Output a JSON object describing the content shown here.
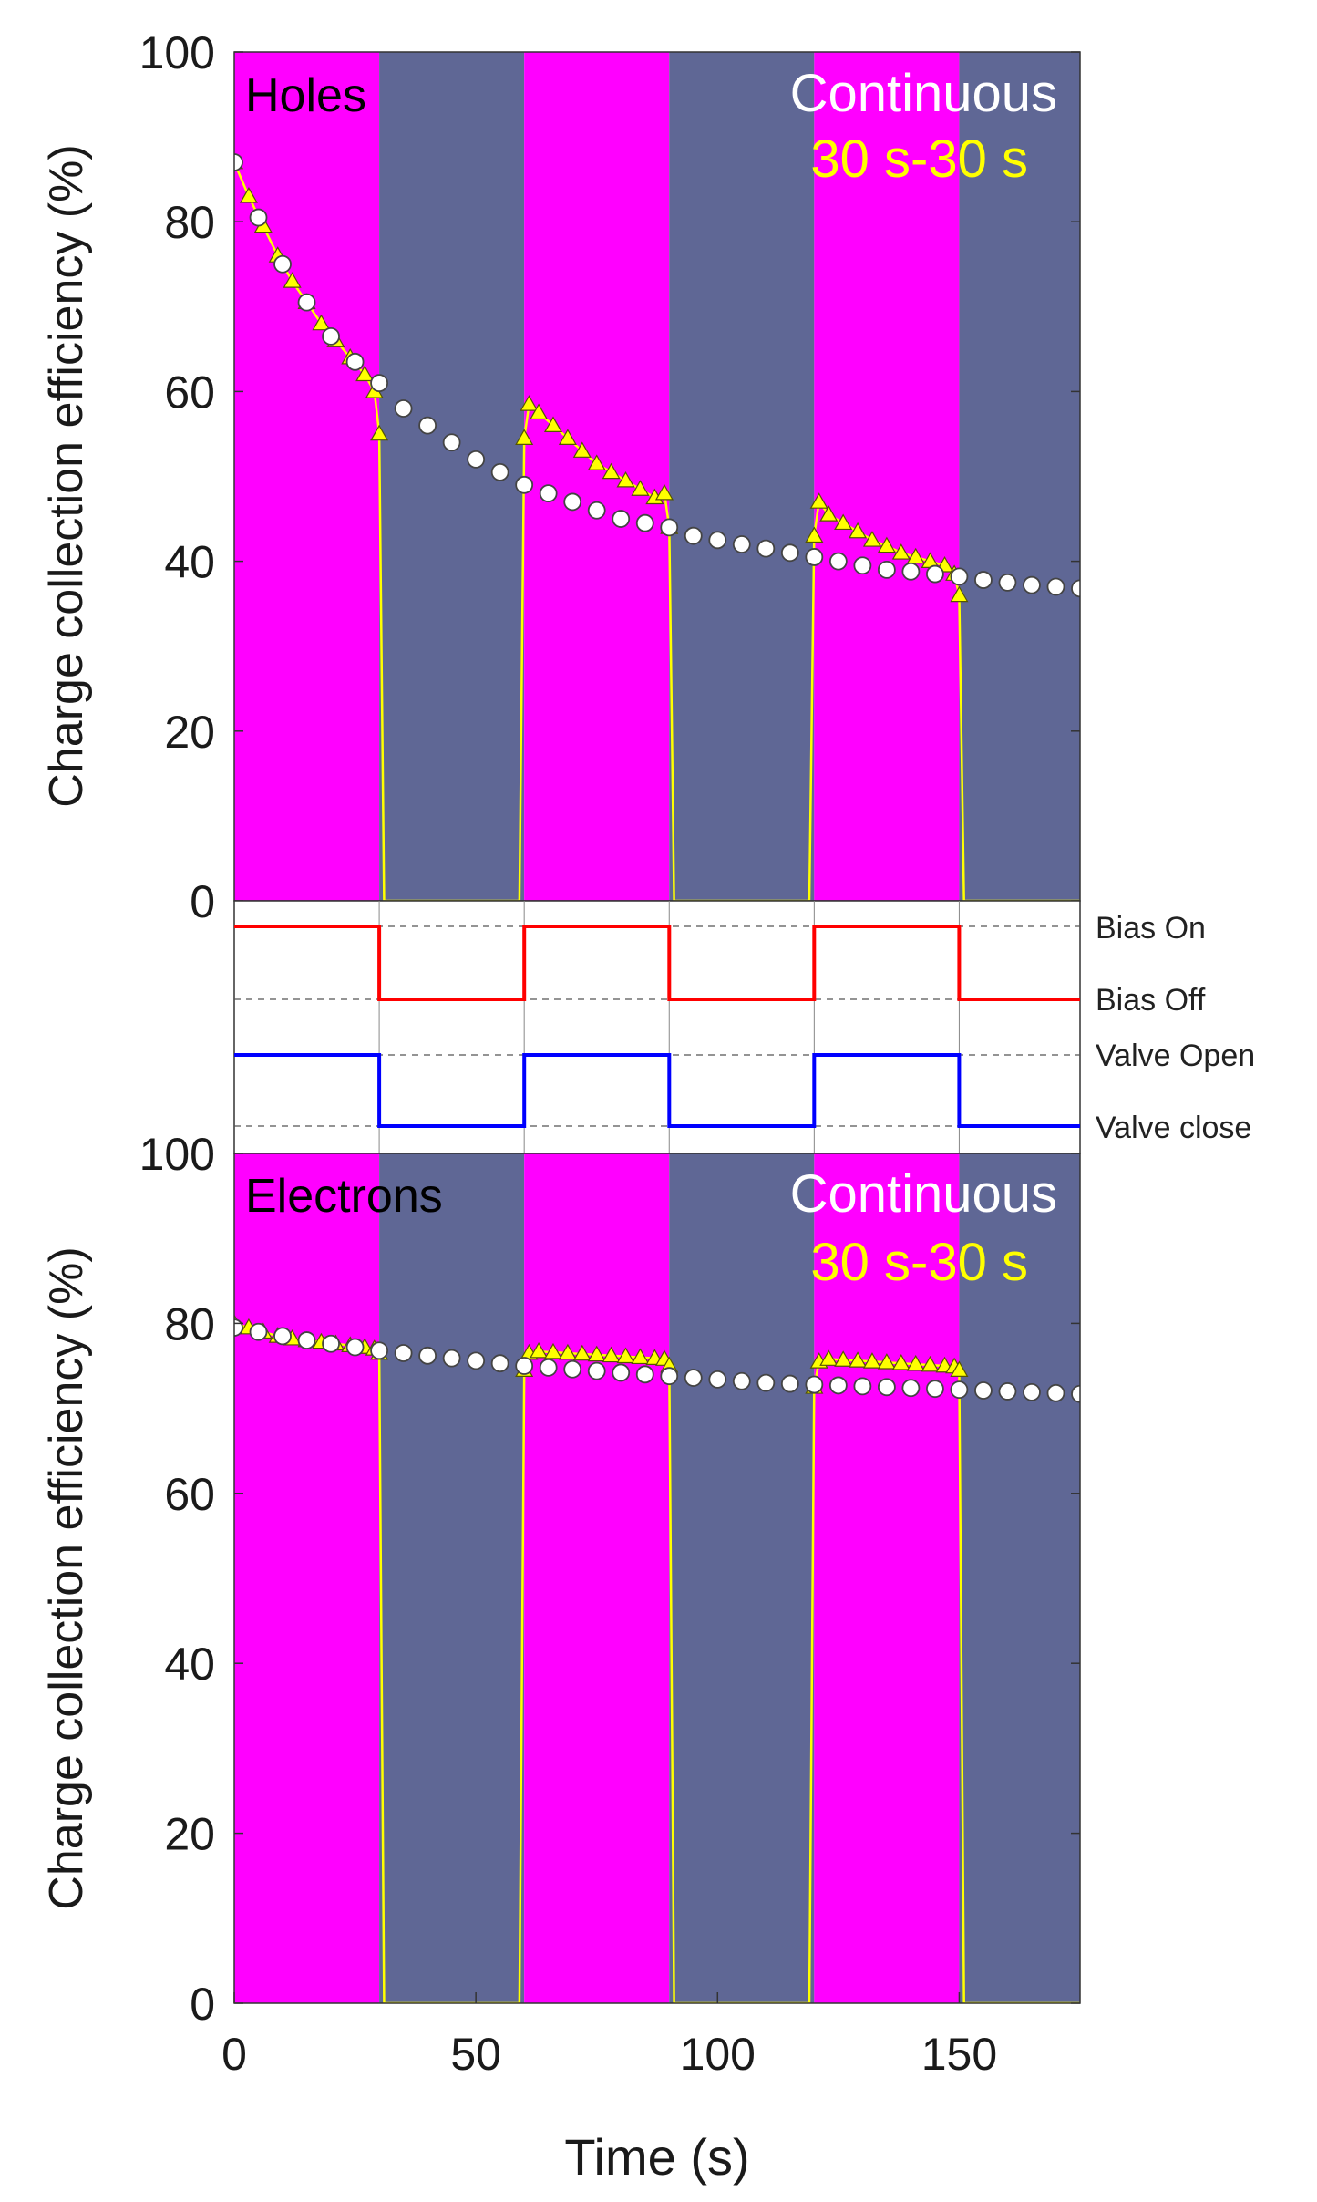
{
  "figure": {
    "xlabel": "Time (s)",
    "ylabel": "Charge collection efficiency (%)",
    "x_ticks": [
      0,
      50,
      100,
      150
    ],
    "x_range": [
      0,
      175
    ]
  },
  "colors": {
    "bias_on_band": "#FF00FF",
    "bias_off_band": "#5F6795",
    "continuous": "#FFFFFF",
    "pulsed": "#FFFF00",
    "bias_trace": "#FF0000",
    "valve_trace": "#0000FF"
  },
  "chart_data": [
    {
      "type": "scatter",
      "panel": "holes",
      "label": "Holes",
      "ylabel": "Charge collection efficiency (%)",
      "xlabel": "Time (s)",
      "xlim": [
        0,
        175
      ],
      "ylim": [
        0,
        100
      ],
      "y_ticks": [
        0,
        20,
        40,
        60,
        80,
        100
      ],
      "legend": [
        "Continuous",
        "30 s-30 s"
      ],
      "bands": [
        {
          "x0": 0,
          "x1": 30,
          "state": "bias_on"
        },
        {
          "x0": 30,
          "x1": 60,
          "state": "bias_off"
        },
        {
          "x0": 60,
          "x1": 90,
          "state": "bias_on"
        },
        {
          "x0": 90,
          "x1": 120,
          "state": "bias_off"
        },
        {
          "x0": 120,
          "x1": 150,
          "state": "bias_on"
        },
        {
          "x0": 150,
          "x1": 175,
          "state": "bias_off"
        }
      ],
      "series": [
        {
          "name": "Continuous",
          "marker": "circle",
          "x": [
            0,
            5,
            10,
            15,
            20,
            25,
            30,
            35,
            40,
            45,
            50,
            55,
            60,
            65,
            70,
            75,
            80,
            85,
            90,
            95,
            100,
            105,
            110,
            115,
            120,
            125,
            130,
            135,
            140,
            145,
            150,
            155,
            160,
            165,
            170,
            175
          ],
          "y": [
            87,
            80.5,
            75,
            70.5,
            66.5,
            63.5,
            61,
            58,
            56,
            54,
            52,
            50.5,
            49,
            48,
            47,
            46,
            45,
            44.5,
            44,
            43,
            42.5,
            42,
            41.5,
            41,
            40.5,
            40,
            39.5,
            39,
            38.8,
            38.5,
            38.2,
            37.8,
            37.5,
            37.2,
            37,
            36.8
          ]
        },
        {
          "name": "30 s-30 s",
          "marker": "triangle",
          "x": [
            0,
            3,
            6,
            9,
            12,
            15,
            18,
            21,
            24,
            27,
            29,
            30,
            31,
            59,
            60,
            61,
            63,
            66,
            69,
            72,
            75,
            78,
            81,
            84,
            87,
            89,
            90,
            91,
            119,
            120,
            121,
            123,
            126,
            129,
            132,
            135,
            138,
            141,
            144,
            147,
            149,
            150,
            151,
            175
          ],
          "y": [
            87,
            83,
            79.5,
            76,
            73,
            70.5,
            68,
            66,
            64,
            62,
            60,
            55,
            0,
            0,
            54.5,
            58.5,
            57.5,
            56,
            54.5,
            53,
            51.5,
            50.5,
            49.5,
            48.5,
            47.5,
            48,
            44,
            0,
            0,
            43,
            47,
            45.5,
            44.5,
            43.5,
            42.5,
            41.8,
            41,
            40.5,
            40,
            39.5,
            38.5,
            36,
            0,
            0
          ]
        }
      ]
    },
    {
      "type": "line",
      "panel": "timing",
      "xlim": [
        0,
        175
      ],
      "states": [
        "Bias On",
        "Bias Off",
        "Valve Open",
        "Valve close"
      ],
      "series": [
        {
          "name": "Bias",
          "x": [
            0,
            30,
            30,
            60,
            60,
            90,
            90,
            120,
            120,
            150,
            150,
            175
          ],
          "state": [
            "Bias On",
            "Bias On",
            "Bias Off",
            "Bias Off",
            "Bias On",
            "Bias On",
            "Bias Off",
            "Bias Off",
            "Bias On",
            "Bias On",
            "Bias Off",
            "Bias Off"
          ]
        },
        {
          "name": "Valve",
          "x": [
            0,
            30,
            30,
            60,
            60,
            90,
            90,
            120,
            120,
            150,
            150,
            175
          ],
          "state": [
            "Valve Open",
            "Valve Open",
            "Valve close",
            "Valve close",
            "Valve Open",
            "Valve Open",
            "Valve close",
            "Valve close",
            "Valve Open",
            "Valve Open",
            "Valve close",
            "Valve close"
          ]
        }
      ]
    },
    {
      "type": "scatter",
      "panel": "electrons",
      "label": "Electrons",
      "ylabel": "Charge collection efficiency (%)",
      "xlabel": "Time (s)",
      "xlim": [
        0,
        175
      ],
      "ylim": [
        0,
        100
      ],
      "y_ticks": [
        0,
        20,
        40,
        60,
        80,
        100
      ],
      "legend": [
        "Continuous",
        "30 s-30 s"
      ],
      "bands": [
        {
          "x0": 0,
          "x1": 30,
          "state": "bias_on"
        },
        {
          "x0": 30,
          "x1": 60,
          "state": "bias_off"
        },
        {
          "x0": 60,
          "x1": 90,
          "state": "bias_on"
        },
        {
          "x0": 90,
          "x1": 120,
          "state": "bias_off"
        },
        {
          "x0": 120,
          "x1": 150,
          "state": "bias_on"
        },
        {
          "x0": 150,
          "x1": 175,
          "state": "bias_off"
        }
      ],
      "series": [
        {
          "name": "Continuous",
          "marker": "circle",
          "x": [
            0,
            5,
            10,
            15,
            20,
            25,
            30,
            35,
            40,
            45,
            50,
            55,
            60,
            65,
            70,
            75,
            80,
            85,
            90,
            95,
            100,
            105,
            110,
            115,
            120,
            125,
            130,
            135,
            140,
            145,
            150,
            155,
            160,
            165,
            170,
            175
          ],
          "y": [
            79.5,
            79,
            78.5,
            78,
            77.6,
            77.2,
            76.8,
            76.5,
            76.2,
            75.9,
            75.6,
            75.3,
            75,
            74.8,
            74.6,
            74.4,
            74.2,
            74,
            73.8,
            73.6,
            73.4,
            73.2,
            73,
            72.9,
            72.8,
            72.7,
            72.6,
            72.5,
            72.4,
            72.3,
            72.2,
            72.1,
            72,
            71.9,
            71.8,
            71.7
          ]
        },
        {
          "name": "30 s-30 s",
          "marker": "triangle",
          "x": [
            0,
            3,
            6,
            9,
            12,
            15,
            18,
            21,
            24,
            27,
            29,
            30,
            31,
            59,
            60,
            61,
            63,
            66,
            69,
            72,
            75,
            78,
            81,
            84,
            87,
            89,
            90,
            91,
            119,
            120,
            121,
            123,
            126,
            129,
            132,
            135,
            138,
            141,
            144,
            147,
            149,
            150,
            151,
            175
          ],
          "y": [
            80,
            79.5,
            79,
            78.5,
            78.2,
            78,
            77.8,
            77.6,
            77.4,
            77.2,
            77,
            76.5,
            0,
            0,
            74.5,
            76.5,
            76.7,
            76.6,
            76.5,
            76.4,
            76.3,
            76.2,
            76.1,
            76,
            75.9,
            75.8,
            75,
            0,
            0,
            72.5,
            75.5,
            75.8,
            75.7,
            75.6,
            75.5,
            75.4,
            75.3,
            75.2,
            75.1,
            75,
            74.9,
            74.5,
            0,
            0
          ]
        }
      ]
    }
  ]
}
